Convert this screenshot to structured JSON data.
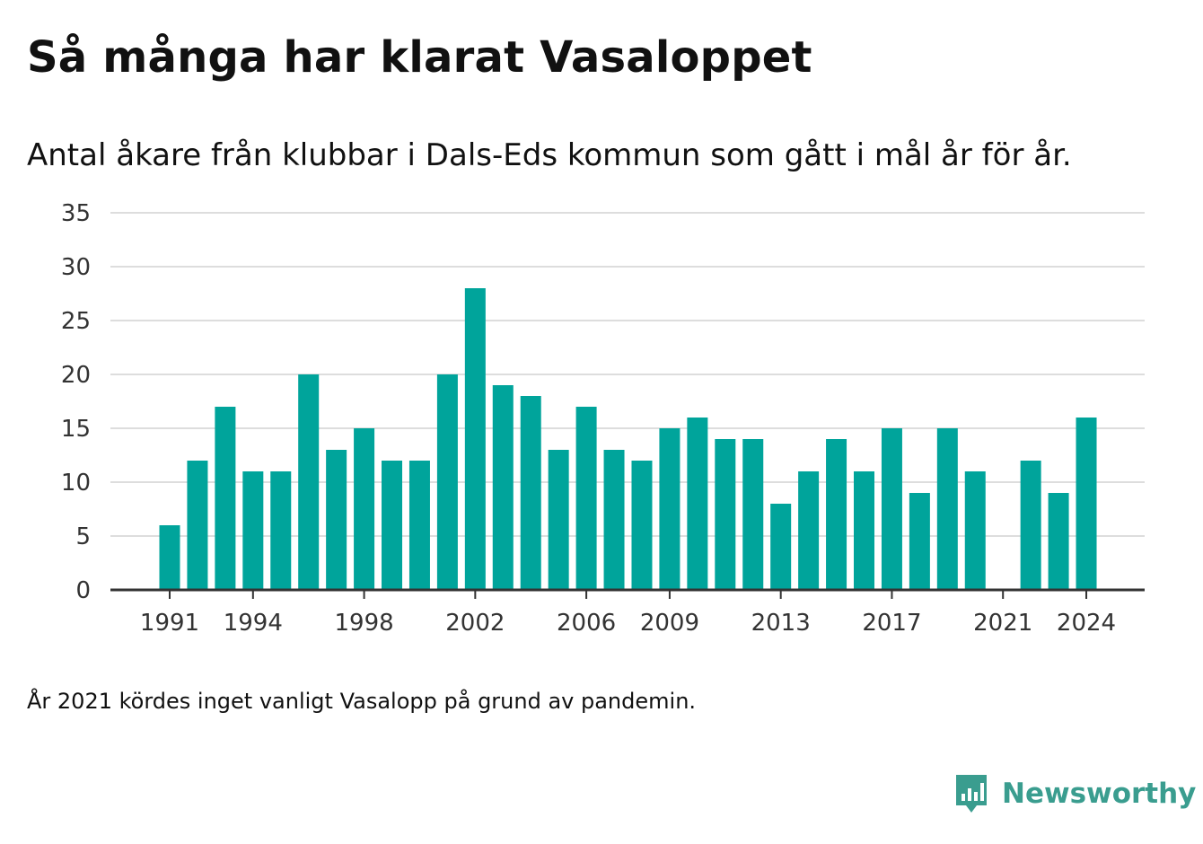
{
  "title": "Så många har klarat Vasaloppet",
  "subtitle": "Antal åkare från klubbar i Dals-Eds kommun som gått i mål år för år.",
  "footnote": "År 2021 kördes inget vanligt Vasalopp på grund av pandemin.",
  "brand": {
    "name": "Newsworthy",
    "logo_icon": "newsworthy-bar-chart-logo-icon",
    "color": "#3a9d8f"
  },
  "colors": {
    "bar": "#00a49b",
    "grid": "#dddddd",
    "axis": "#333333",
    "text": "#111111"
  },
  "chart_data": {
    "type": "bar",
    "years": [
      1991,
      1992,
      1993,
      1994,
      1995,
      1996,
      1997,
      1998,
      1999,
      2000,
      2001,
      2002,
      2003,
      2004,
      2005,
      2006,
      2007,
      2008,
      2009,
      2010,
      2011,
      2012,
      2013,
      2014,
      2015,
      2016,
      2017,
      2018,
      2019,
      2020,
      2021,
      2022,
      2023,
      2024
    ],
    "values": [
      6,
      12,
      17,
      11,
      11,
      20,
      13,
      15,
      12,
      12,
      20,
      28,
      19,
      18,
      13,
      17,
      13,
      12,
      15,
      16,
      14,
      14,
      8,
      11,
      14,
      11,
      15,
      9,
      15,
      11,
      null,
      12,
      9,
      16
    ],
    "x_tick_labels": [
      "1991",
      "1994",
      "1998",
      "2002",
      "2006",
      "2009",
      "2013",
      "2017",
      "2021",
      "2024"
    ],
    "y_ticks": [
      0,
      5,
      10,
      15,
      20,
      25,
      30,
      35
    ],
    "ylim": [
      0,
      35
    ],
    "grid": true,
    "legend": "none"
  }
}
